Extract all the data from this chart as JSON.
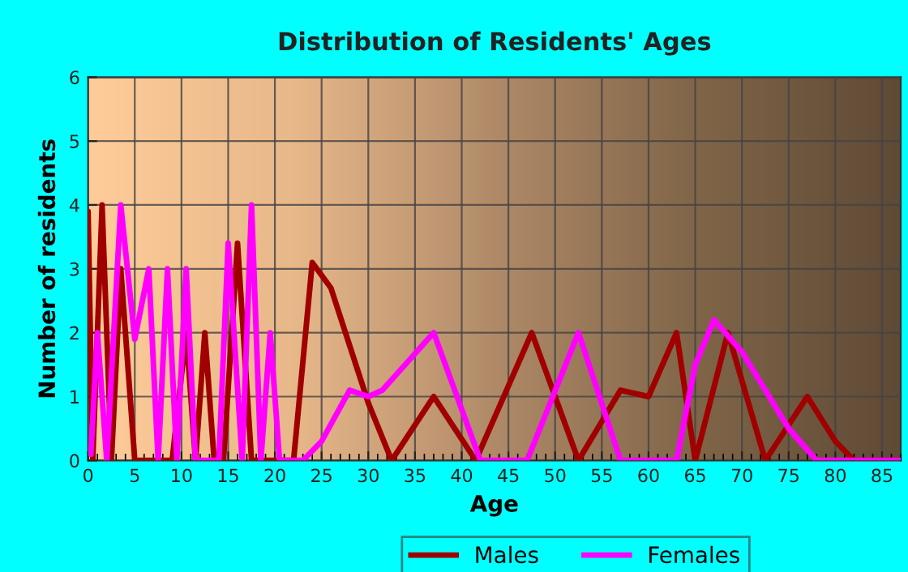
{
  "chart_data": {
    "type": "line",
    "title": "Distribution of Residents' Ages",
    "xlabel": "Age",
    "ylabel": "Number of residents",
    "xlim": [
      0,
      87
    ],
    "ylim": [
      0,
      6
    ],
    "xticks": [
      0,
      5,
      10,
      15,
      20,
      25,
      30,
      35,
      40,
      45,
      50,
      55,
      60,
      65,
      70,
      75,
      80,
      85
    ],
    "yticks": [
      0,
      1,
      2,
      3,
      4,
      5,
      6
    ],
    "grid": true,
    "legend": "bottom",
    "marker": "none",
    "line_style": "solid",
    "series": [
      {
        "name": "Males",
        "color": "#a00000",
        "x": [
          0,
          0.5,
          1.5,
          2.5,
          3.5,
          5,
          9,
          10.5,
          11.5,
          12.5,
          13.5,
          14.5,
          16,
          17.5,
          22,
          24,
          26,
          28,
          30,
          32.5,
          37,
          41.5,
          47.5,
          52.5,
          57,
          60,
          63,
          65,
          68.5,
          72.5,
          77,
          80,
          82,
          87
        ],
        "values": [
          3.9,
          0,
          4,
          0,
          3,
          0,
          0,
          2,
          0,
          2,
          0,
          0,
          3.4,
          0,
          0,
          3.1,
          2.7,
          1.8,
          0.9,
          0,
          1,
          0,
          2,
          0,
          1.1,
          1,
          2,
          0,
          2,
          0,
          1,
          0.3,
          0,
          0
        ]
      },
      {
        "name": "Females",
        "color": "#ff00ff",
        "x": [
          0.3,
          1,
          2,
          3.5,
          5,
          6.5,
          7.5,
          8.5,
          9.5,
          10.5,
          11.5,
          14,
          15,
          16.5,
          17.5,
          18.5,
          19.5,
          20.5,
          23,
          25,
          28,
          30,
          31.5,
          37,
          42,
          47,
          52.5,
          57,
          63,
          65,
          67,
          70,
          75,
          78,
          87
        ],
        "values": [
          0.1,
          2,
          0,
          4,
          1.9,
          3,
          0,
          3,
          0,
          3,
          0,
          0,
          3.4,
          0,
          4,
          0,
          2,
          0,
          0,
          0.3,
          1.1,
          1,
          1.1,
          2,
          0,
          0,
          2,
          0,
          0,
          1.5,
          2.2,
          1.7,
          0.5,
          0,
          0
        ]
      }
    ]
  }
}
